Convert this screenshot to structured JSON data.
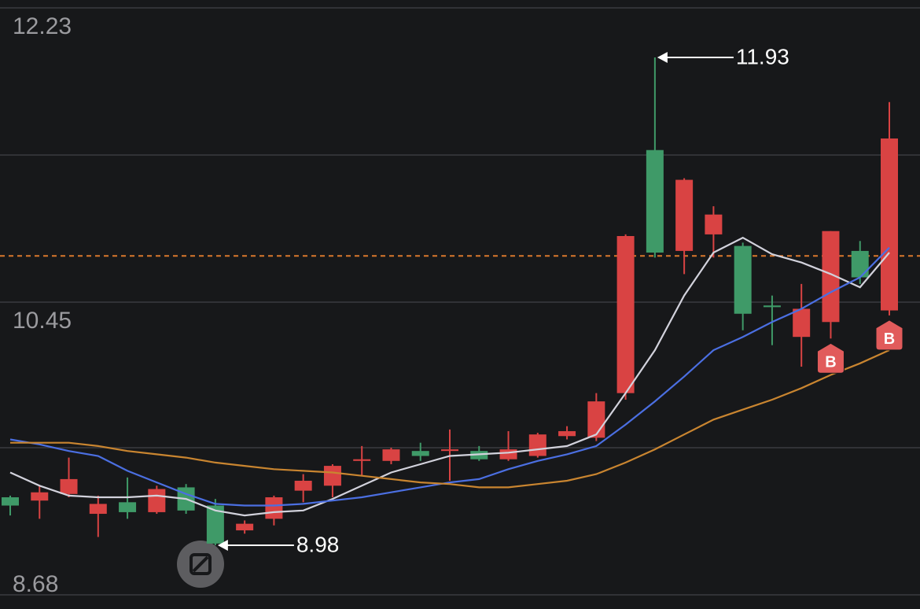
{
  "chart_data": {
    "type": "candlestick",
    "up_color": "#d94343",
    "down_color": "#3f9a68",
    "open": [
      9.27,
      9.25,
      9.29,
      9.17,
      9.24,
      9.18,
      9.33,
      9.22,
      9.07,
      9.14,
      9.31,
      9.34,
      9.49,
      9.49,
      9.55,
      9.55,
      9.55,
      9.5,
      9.52,
      9.64,
      9.63,
      9.9,
      11.37,
      10.76,
      10.86,
      10.79,
      10.43,
      10.24,
      10.33,
      10.76,
      10.4
    ],
    "high": [
      9.28,
      9.34,
      9.51,
      9.28,
      9.39,
      9.34,
      9.35,
      9.26,
      9.13,
      9.28,
      9.41,
      9.47,
      9.58,
      9.57,
      9.6,
      9.68,
      9.58,
      9.67,
      9.66,
      9.7,
      9.9,
      10.86,
      11.93,
      11.2,
      11.03,
      10.81,
      10.49,
      10.56,
      10.88,
      10.82,
      11.66
    ],
    "low": [
      9.16,
      9.14,
      9.27,
      9.03,
      9.14,
      9.17,
      9.17,
      8.98,
      9.05,
      9.1,
      9.24,
      9.27,
      9.4,
      9.47,
      9.49,
      9.37,
      9.49,
      9.49,
      9.51,
      9.62,
      9.61,
      9.86,
      10.72,
      10.62,
      10.72,
      10.28,
      10.19,
      10.06,
      10.23,
      10.56,
      10.37
    ],
    "close": [
      9.22,
      9.3,
      9.38,
      9.23,
      9.18,
      9.32,
      9.19,
      8.99,
      9.11,
      9.27,
      9.37,
      9.46,
      9.5,
      9.56,
      9.52,
      9.56,
      9.5,
      9.56,
      9.65,
      9.67,
      9.85,
      10.85,
      10.75,
      11.19,
      10.98,
      10.38,
      10.42,
      10.41,
      10.88,
      10.6,
      11.44
    ],
    "series": [
      {
        "color": "#d2d2dc",
        "values": [
          9.42,
          9.34,
          9.28,
          9.27,
          9.27,
          9.28,
          9.26,
          9.19,
          9.16,
          9.18,
          9.19,
          9.26,
          9.34,
          9.42,
          9.47,
          9.52,
          9.53,
          9.54,
          9.56,
          9.58,
          9.65,
          9.9,
          10.16,
          10.49,
          10.75,
          10.84,
          10.74,
          10.69,
          10.62,
          10.54,
          10.75
        ]
      },
      {
        "color": "#4b6fe2",
        "values": [
          9.62,
          9.59,
          9.55,
          9.52,
          9.43,
          9.36,
          9.29,
          9.23,
          9.22,
          9.22,
          9.23,
          9.25,
          9.27,
          9.3,
          9.33,
          9.36,
          9.38,
          9.44,
          9.49,
          9.53,
          9.58,
          9.71,
          9.85,
          10.0,
          10.16,
          10.24,
          10.33,
          10.41,
          10.51,
          10.6,
          10.78
        ]
      },
      {
        "color": "#c98530",
        "values": [
          9.6,
          9.6,
          9.6,
          9.58,
          9.55,
          9.53,
          9.51,
          9.48,
          9.46,
          9.44,
          9.43,
          9.42,
          9.4,
          9.38,
          9.36,
          9.35,
          9.33,
          9.33,
          9.35,
          9.37,
          9.41,
          9.48,
          9.56,
          9.65,
          9.74,
          9.8,
          9.86,
          9.93,
          10.01,
          10.08,
          10.16
        ]
      }
    ],
    "reference_line": 10.73,
    "reference_color": "#d9772c",
    "ylim": [
      8.68,
      12.23
    ],
    "yticks": [
      12.23,
      10.45,
      8.68
    ],
    "grid": true,
    "annotations": [
      11.93,
      8.98
    ],
    "markers": [
      {
        "at": 28,
        "label": "B"
      },
      {
        "at": 30,
        "label": "B"
      }
    ]
  }
}
